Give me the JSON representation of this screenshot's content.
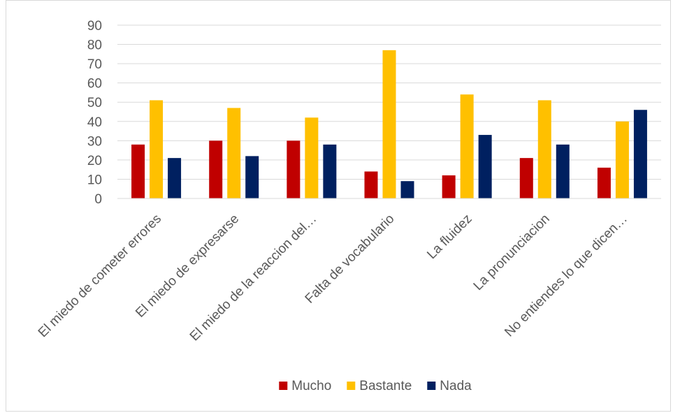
{
  "chart_data": {
    "type": "bar",
    "categories": [
      "El miedo de cometer errores",
      "El miedo de expresarse",
      "El miedo de la reaccion del…",
      "Falta de vocabulario",
      "La fluidez",
      "La pronunciacion",
      "No entiendes lo que dicen…"
    ],
    "series": [
      {
        "name": "Mucho",
        "color": "#c00000",
        "values": [
          28,
          30,
          30,
          14,
          12,
          21,
          16
        ]
      },
      {
        "name": "Bastante",
        "color": "#ffc000",
        "values": [
          51,
          47,
          42,
          77,
          54,
          51,
          40
        ]
      },
      {
        "name": "Nada",
        "color": "#002060",
        "values": [
          21,
          22,
          28,
          9,
          33,
          28,
          46
        ]
      }
    ],
    "ylim": [
      0,
      90
    ],
    "yticks": [
      0,
      10,
      20,
      30,
      40,
      50,
      60,
      70,
      80,
      90
    ],
    "grid": true,
    "legend_position": "bottom",
    "gridline_color": "#d9d9d9",
    "axis_label_color": "#595959"
  }
}
